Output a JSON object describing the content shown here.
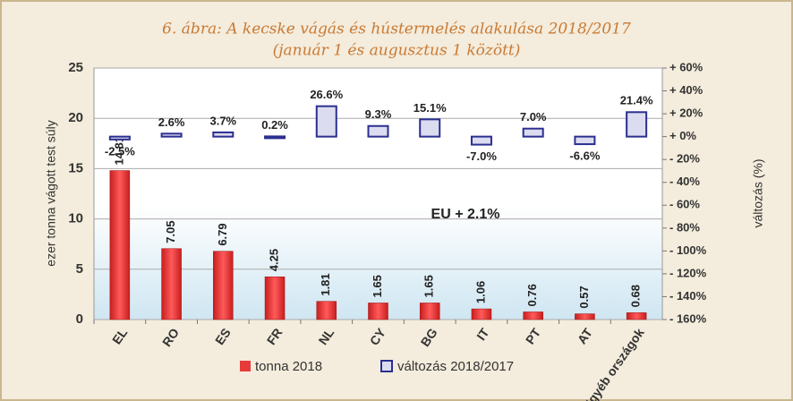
{
  "chart_data": {
    "type": "bar",
    "title": "6. ábra: A kecske vágás és hústermelés alakulása 2018/2017",
    "subtitle": "(január 1 és augusztus 1 között)",
    "ylabel": "ezer tonna vágott test súly",
    "y2label": "változás (%)",
    "annotation": "EU  + 2.1%",
    "categories": [
      "EL",
      "RO",
      "ES",
      "FR",
      "NL",
      "CY",
      "BG",
      "IT",
      "PT",
      "AT",
      "Egyéb országok"
    ],
    "series": [
      {
        "name": "tonna 2018",
        "color": "#e53b3b",
        "values": [
          14.81,
          7.05,
          6.79,
          4.25,
          1.81,
          1.65,
          1.65,
          1.06,
          0.76,
          0.57,
          0.68
        ]
      },
      {
        "name": "változás 2018/2017",
        "color": "#2b2f8f",
        "axis": "y2",
        "values": [
          -2.5,
          2.6,
          3.7,
          0.2,
          26.6,
          9.3,
          15.1,
          -7.0,
          7.0,
          -6.6,
          21.4
        ],
        "value_labels": [
          "-2.5%",
          "2.6%",
          "3.7%",
          "0.2%",
          "26.6%",
          "9.3%",
          "15.1%",
          "-7.0%",
          "7.0%",
          "-6.6%",
          "21.4%"
        ]
      }
    ],
    "ylim": [
      0,
      25
    ],
    "yticks": [
      0,
      5,
      10,
      15,
      20,
      25
    ],
    "y2lim": [
      -160,
      60
    ],
    "y2ticks": [
      {
        "value": 60,
        "label": "+ 60%"
      },
      {
        "value": 40,
        "label": "+ 40%"
      },
      {
        "value": 20,
        "label": "+ 20%"
      },
      {
        "value": 0,
        "label": "+ 0%"
      },
      {
        "value": -20,
        "label": "- 20%"
      },
      {
        "value": -40,
        "label": "- 40%"
      },
      {
        "value": -60,
        "label": "- 60%"
      },
      {
        "value": -80,
        "label": "- 80%"
      },
      {
        "value": -100,
        "label": "- 100%"
      },
      {
        "value": -120,
        "label": "- 120%"
      },
      {
        "value": -140,
        "label": "- 140%"
      },
      {
        "value": -160,
        "label": "- 160%"
      }
    ],
    "grid": true
  }
}
